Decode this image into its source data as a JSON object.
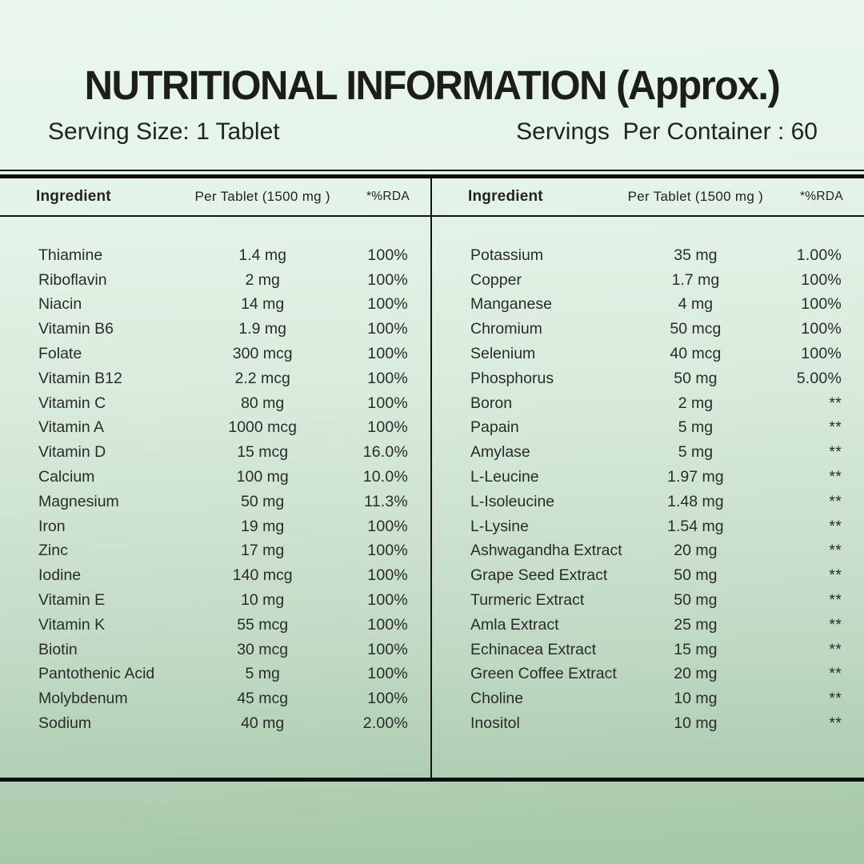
{
  "header": {
    "title": "NUTRITIONAL INFORMATION (Approx.)",
    "serving_size": "Serving Size: 1 Tablet",
    "servings_per_container": "Servings  Per Container : 60"
  },
  "colors": {
    "background_top": "#e9f7ed",
    "background_bottom": "#a6c7aa",
    "rule": "#0e0f0e",
    "text": "#2a2b2a"
  },
  "tables": {
    "columns": {
      "ingredient": "Ingredient",
      "per_tablet": "Per Tablet (1500 mg )",
      "rda": "*%RDA"
    },
    "left": {
      "rows": [
        {
          "name": "Thiamine",
          "amount": "1.4 mg",
          "rda": "100%"
        },
        {
          "name": "Riboflavin",
          "amount": "2 mg",
          "rda": "100%"
        },
        {
          "name": "Niacin",
          "amount": "14 mg",
          "rda": "100%"
        },
        {
          "name": "Vitamin B6",
          "amount": "1.9 mg",
          "rda": "100%"
        },
        {
          "name": "Folate",
          "amount": "300 mcg",
          "rda": "100%"
        },
        {
          "name": "Vitamin B12",
          "amount": "2.2 mcg",
          "rda": "100%"
        },
        {
          "name": "Vitamin C",
          "amount": "80 mg",
          "rda": "100%"
        },
        {
          "name": "Vitamin A",
          "amount": "1000 mcg",
          "rda": "100%"
        },
        {
          "name": "Vitamin D",
          "amount": "15 mcg",
          "rda": "16.0%"
        },
        {
          "name": "Calcium",
          "amount": "100 mg",
          "rda": "10.0%"
        },
        {
          "name": "Magnesium",
          "amount": "50 mg",
          "rda": "11.3%"
        },
        {
          "name": "Iron",
          "amount": "19 mg",
          "rda": "100%"
        },
        {
          "name": "Zinc",
          "amount": "17 mg",
          "rda": "100%"
        },
        {
          "name": "Iodine",
          "amount": "140 mcg",
          "rda": "100%"
        },
        {
          "name": "Vitamin E",
          "amount": "10 mg",
          "rda": "100%"
        },
        {
          "name": "Vitamin K",
          "amount": "55 mcg",
          "rda": "100%"
        },
        {
          "name": "Biotin",
          "amount": "30 mcg",
          "rda": "100%"
        },
        {
          "name": "Pantothenic Acid",
          "amount": "5 mg",
          "rda": "100%"
        },
        {
          "name": "Molybdenum",
          "amount": "45 mcg",
          "rda": "100%"
        },
        {
          "name": "Sodium",
          "amount": "40 mg",
          "rda": "2.00%"
        }
      ]
    },
    "right": {
      "rows": [
        {
          "name": "Potassium",
          "amount": "35 mg",
          "rda": "1.00%"
        },
        {
          "name": "Copper",
          "amount": "1.7 mg",
          "rda": "100%"
        },
        {
          "name": "Manganese",
          "amount": "4 mg",
          "rda": "100%"
        },
        {
          "name": "Chromium",
          "amount": "50 mcg",
          "rda": "100%"
        },
        {
          "name": "Selenium",
          "amount": "40 mcg",
          "rda": "100%"
        },
        {
          "name": "Phosphorus",
          "amount": "50 mg",
          "rda": "5.00%"
        },
        {
          "name": "Boron",
          "amount": "2 mg",
          "rda": "**"
        },
        {
          "name": "Papain",
          "amount": "5 mg",
          "rda": "**"
        },
        {
          "name": "Amylase",
          "amount": "5 mg",
          "rda": "**"
        },
        {
          "name": "L-Leucine",
          "amount": "1.97 mg",
          "rda": "**"
        },
        {
          "name": "L-Isoleucine",
          "amount": "1.48 mg",
          "rda": "**"
        },
        {
          "name": "L-Lysine",
          "amount": "1.54 mg",
          "rda": "**"
        },
        {
          "name": "Ashwagandha Extract",
          "amount": "20 mg",
          "rda": "**"
        },
        {
          "name": "Grape Seed Extract",
          "amount": "50 mg",
          "rda": "**"
        },
        {
          "name": "Turmeric Extract",
          "amount": "50 mg",
          "rda": "**"
        },
        {
          "name": "Amla Extract",
          "amount": "25 mg",
          "rda": "**"
        },
        {
          "name": "Echinacea Extract",
          "amount": "15 mg",
          "rda": "**"
        },
        {
          "name": "Green Coffee Extract",
          "amount": "20 mg",
          "rda": "**"
        },
        {
          "name": "Choline",
          "amount": "10 mg",
          "rda": "**"
        },
        {
          "name": "Inositol",
          "amount": "10 mg",
          "rda": "**"
        }
      ]
    }
  }
}
